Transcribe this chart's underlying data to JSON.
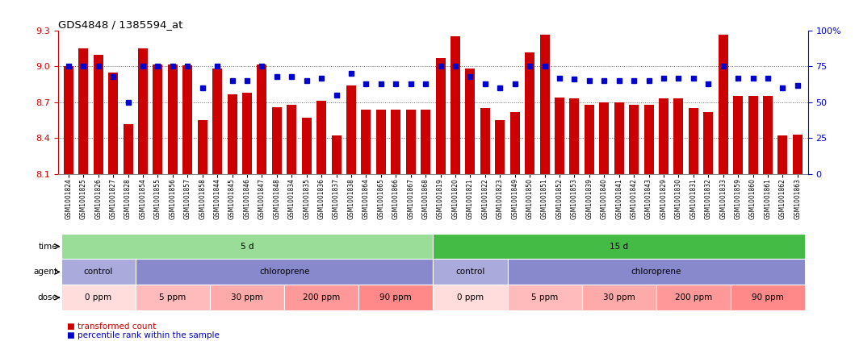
{
  "title": "GDS4848 / 1385594_at",
  "samples": [
    "GSM1001824",
    "GSM1001825",
    "GSM1001826",
    "GSM1001827",
    "GSM1001828",
    "GSM1001854",
    "GSM1001855",
    "GSM1001856",
    "GSM1001857",
    "GSM1001858",
    "GSM1001844",
    "GSM1001845",
    "GSM1001846",
    "GSM1001847",
    "GSM1001848",
    "GSM1001834",
    "GSM1001835",
    "GSM1001836",
    "GSM1001837",
    "GSM1001838",
    "GSM1001864",
    "GSM1001865",
    "GSM1001866",
    "GSM1001867",
    "GSM1001868",
    "GSM1001819",
    "GSM1001820",
    "GSM1001821",
    "GSM1001822",
    "GSM1001823",
    "GSM1001849",
    "GSM1001850",
    "GSM1001851",
    "GSM1001852",
    "GSM1001853",
    "GSM1001839",
    "GSM1001840",
    "GSM1001841",
    "GSM1001842",
    "GSM1001843",
    "GSM1001829",
    "GSM1001830",
    "GSM1001831",
    "GSM1001832",
    "GSM1001833",
    "GSM1001859",
    "GSM1001860",
    "GSM1001861",
    "GSM1001862",
    "GSM1001863"
  ],
  "bar_values": [
    9.0,
    9.15,
    9.1,
    8.95,
    8.52,
    9.15,
    9.02,
    9.02,
    9.01,
    8.55,
    8.98,
    8.77,
    8.78,
    9.02,
    8.66,
    8.68,
    8.57,
    8.71,
    8.42,
    8.84,
    8.64,
    8.64,
    8.64,
    8.64,
    8.64,
    9.07,
    9.25,
    8.98,
    8.65,
    8.55,
    8.62,
    9.12,
    9.27,
    8.74,
    8.73,
    8.68,
    8.7,
    8.7,
    8.68,
    8.68,
    8.73,
    8.73,
    8.65,
    8.62,
    9.27,
    8.75,
    8.75,
    8.75,
    8.42,
    8.43
  ],
  "dot_values": [
    75,
    75,
    75,
    68,
    50,
    75,
    75,
    75,
    75,
    60,
    75,
    65,
    65,
    75,
    68,
    68,
    65,
    67,
    55,
    70,
    63,
    63,
    63,
    63,
    63,
    75,
    75,
    68,
    63,
    60,
    63,
    75,
    75,
    67,
    66,
    65,
    65,
    65,
    65,
    65,
    67,
    67,
    67,
    63,
    75,
    67,
    67,
    67,
    60,
    62
  ],
  "ylim_left": [
    8.1,
    9.3
  ],
  "ylim_right": [
    0,
    100
  ],
  "yticks_left": [
    8.1,
    8.4,
    8.7,
    9.0,
    9.3
  ],
  "yticks_right": [
    0,
    25,
    50,
    75,
    100
  ],
  "bar_color": "#cc0000",
  "dot_color": "#0000cc",
  "hline_values": [
    8.4,
    8.7,
    9.0
  ],
  "time_row": [
    {
      "label": "5 d",
      "start": 0,
      "end": 25,
      "color": "#99dd99"
    },
    {
      "label": "15 d",
      "start": 25,
      "end": 50,
      "color": "#44bb44"
    }
  ],
  "agent_row": [
    {
      "label": "control",
      "start": 0,
      "end": 5,
      "color": "#aaaadd"
    },
    {
      "label": "chloroprene",
      "start": 5,
      "end": 25,
      "color": "#8888cc"
    },
    {
      "label": "control",
      "start": 25,
      "end": 30,
      "color": "#aaaadd"
    },
    {
      "label": "chloroprene",
      "start": 30,
      "end": 50,
      "color": "#8888cc"
    }
  ],
  "dose_row": [
    {
      "label": "0 ppm",
      "start": 0,
      "end": 5,
      "color": "#ffdddd"
    },
    {
      "label": "5 ppm",
      "start": 5,
      "end": 10,
      "color": "#ffbbbb"
    },
    {
      "label": "30 ppm",
      "start": 10,
      "end": 15,
      "color": "#ffaaaa"
    },
    {
      "label": "200 ppm",
      "start": 15,
      "end": 20,
      "color": "#ff9999"
    },
    {
      "label": "90 ppm",
      "start": 20,
      "end": 25,
      "color": "#ff8888"
    },
    {
      "label": "0 ppm",
      "start": 25,
      "end": 30,
      "color": "#ffdddd"
    },
    {
      "label": "5 ppm",
      "start": 30,
      "end": 35,
      "color": "#ffbbbb"
    },
    {
      "label": "30 ppm",
      "start": 35,
      "end": 40,
      "color": "#ffaaaa"
    },
    {
      "label": "200 ppm",
      "start": 40,
      "end": 45,
      "color": "#ff9999"
    },
    {
      "label": "90 ppm",
      "start": 45,
      "end": 50,
      "color": "#ff8888"
    }
  ],
  "row_labels": [
    "time",
    "agent",
    "dose"
  ],
  "legend_items": [
    {
      "label": "transformed count",
      "color": "#cc0000"
    },
    {
      "label": "percentile rank within the sample",
      "color": "#0000cc"
    }
  ],
  "fig_width": 10.59,
  "fig_height": 4.23,
  "dpi": 100
}
